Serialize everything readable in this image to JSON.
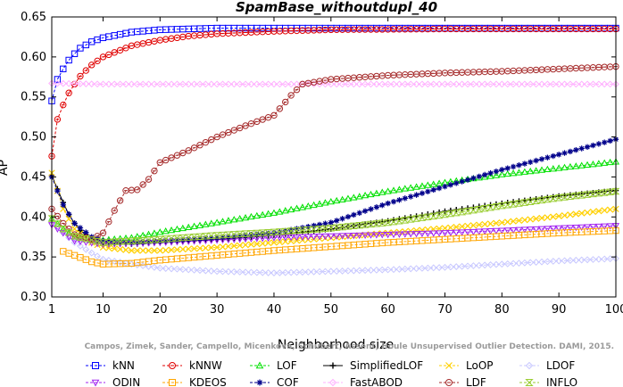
{
  "chart_data": {
    "type": "line",
    "title": "SpamBase_withoutdupl_40",
    "xlabel": "Neighborhood size",
    "ylabel": "AP",
    "xlim": [
      1,
      100
    ],
    "ylim": [
      0.3,
      0.65
    ],
    "xticks": [
      1,
      10,
      20,
      30,
      40,
      50,
      60,
      70,
      80,
      90,
      100
    ],
    "yticks": [
      0.3,
      0.35,
      0.4,
      0.45,
      0.5,
      0.55,
      0.6,
      0.65
    ],
    "ytick_labels": [
      "0.30",
      "0.35",
      "0.40",
      "0.45",
      "0.50",
      "0.55",
      "0.60",
      "0.65"
    ],
    "grid": false,
    "legend_position": "bottom",
    "annotation": "Campos, Zimek, Sander, Campello, Micenkova, Schubert, Assent, Houle Unsupervised Outlier Detection. DAMI, 2015.",
    "series": [
      {
        "name": "kNN",
        "color": "#0000ff",
        "marker": "square",
        "line": "dashed",
        "points": [
          [
            1,
            0.545
          ],
          [
            2,
            0.572
          ],
          [
            3,
            0.585
          ],
          [
            4,
            0.596
          ],
          [
            5,
            0.604
          ],
          [
            6,
            0.611
          ],
          [
            8,
            0.619
          ],
          [
            10,
            0.624
          ],
          [
            15,
            0.631
          ],
          [
            20,
            0.634
          ],
          [
            30,
            0.636
          ],
          [
            50,
            0.636
          ],
          [
            100,
            0.636
          ]
        ]
      },
      {
        "name": "kNNW",
        "color": "#e00000",
        "marker": "circle",
        "line": "dashed",
        "points": [
          [
            1,
            0.476
          ],
          [
            2,
            0.522
          ],
          [
            3,
            0.54
          ],
          [
            4,
            0.555
          ],
          [
            5,
            0.566
          ],
          [
            6,
            0.576
          ],
          [
            8,
            0.59
          ],
          [
            10,
            0.6
          ],
          [
            15,
            0.614
          ],
          [
            20,
            0.621
          ],
          [
            25,
            0.626
          ],
          [
            30,
            0.629
          ],
          [
            40,
            0.632
          ],
          [
            50,
            0.634
          ],
          [
            70,
            0.635
          ],
          [
            100,
            0.635
          ]
        ]
      },
      {
        "name": "LOF",
        "color": "#00e000",
        "marker": "triangle-up",
        "line": "dashed",
        "points": [
          [
            1,
            0.398
          ],
          [
            3,
            0.385
          ],
          [
            5,
            0.375
          ],
          [
            7,
            0.372
          ],
          [
            10,
            0.371
          ],
          [
            15,
            0.374
          ],
          [
            20,
            0.381
          ],
          [
            30,
            0.393
          ],
          [
            40,
            0.405
          ],
          [
            50,
            0.419
          ],
          [
            60,
            0.432
          ],
          [
            70,
            0.443
          ],
          [
            80,
            0.453
          ],
          [
            90,
            0.461
          ],
          [
            100,
            0.469
          ]
        ]
      },
      {
        "name": "SimplifiedLOF",
        "color": "#000000",
        "marker": "plus",
        "line": "solid",
        "points": [
          [
            1,
            0.452
          ],
          [
            2,
            0.435
          ],
          [
            3,
            0.418
          ],
          [
            4,
            0.403
          ],
          [
            5,
            0.392
          ],
          [
            6,
            0.383
          ],
          [
            8,
            0.372
          ],
          [
            10,
            0.368
          ],
          [
            15,
            0.366
          ],
          [
            20,
            0.368
          ],
          [
            30,
            0.372
          ],
          [
            40,
            0.377
          ],
          [
            50,
            0.385
          ],
          [
            60,
            0.395
          ],
          [
            70,
            0.407
          ],
          [
            80,
            0.417
          ],
          [
            90,
            0.426
          ],
          [
            100,
            0.433
          ]
        ]
      },
      {
        "name": "LoOP",
        "color": "#ffd000",
        "marker": "x",
        "line": "dashed",
        "points": [
          [
            1,
            0.455
          ],
          [
            3,
            0.41
          ],
          [
            5,
            0.385
          ],
          [
            8,
            0.368
          ],
          [
            10,
            0.362
          ],
          [
            15,
            0.358
          ],
          [
            20,
            0.358
          ],
          [
            30,
            0.362
          ],
          [
            40,
            0.368
          ],
          [
            50,
            0.374
          ],
          [
            60,
            0.38
          ],
          [
            70,
            0.386
          ],
          [
            80,
            0.393
          ],
          [
            90,
            0.401
          ],
          [
            100,
            0.41
          ]
        ]
      },
      {
        "name": "LDOF",
        "color": "#c8c8ff",
        "marker": "diamond",
        "line": "dashed",
        "points": [
          [
            1,
            0.395
          ],
          [
            3,
            0.38
          ],
          [
            5,
            0.368
          ],
          [
            8,
            0.355
          ],
          [
            10,
            0.347
          ],
          [
            15,
            0.341
          ],
          [
            20,
            0.336
          ],
          [
            30,
            0.332
          ],
          [
            40,
            0.33
          ],
          [
            50,
            0.332
          ],
          [
            60,
            0.334
          ],
          [
            70,
            0.337
          ],
          [
            80,
            0.341
          ],
          [
            90,
            0.345
          ],
          [
            100,
            0.348
          ]
        ]
      },
      {
        "name": "ODIN",
        "color": "#a020f0",
        "marker": "triangle-down",
        "line": "dashed",
        "points": [
          [
            1,
            0.39
          ],
          [
            3,
            0.38
          ],
          [
            5,
            0.37
          ],
          [
            10,
            0.366
          ],
          [
            20,
            0.368
          ],
          [
            30,
            0.371
          ],
          [
            40,
            0.374
          ],
          [
            50,
            0.376
          ],
          [
            60,
            0.378
          ],
          [
            70,
            0.38
          ],
          [
            80,
            0.383
          ],
          [
            90,
            0.386
          ],
          [
            100,
            0.389
          ]
        ]
      },
      {
        "name": "KDEOS",
        "color": "#ffa500",
        "marker": "square",
        "line": "dashed",
        "points": [
          [
            3,
            0.357
          ],
          [
            5,
            0.352
          ],
          [
            8,
            0.344
          ],
          [
            10,
            0.341
          ],
          [
            15,
            0.342
          ],
          [
            20,
            0.346
          ],
          [
            30,
            0.352
          ],
          [
            40,
            0.358
          ],
          [
            50,
            0.363
          ],
          [
            60,
            0.368
          ],
          [
            70,
            0.372
          ],
          [
            80,
            0.376
          ],
          [
            90,
            0.38
          ],
          [
            100,
            0.383
          ]
        ]
      },
      {
        "name": "COF",
        "color": "#00008b",
        "marker": "star",
        "line": "dashed",
        "points": [
          [
            1,
            0.45
          ],
          [
            3,
            0.415
          ],
          [
            5,
            0.392
          ],
          [
            8,
            0.375
          ],
          [
            10,
            0.37
          ],
          [
            15,
            0.368
          ],
          [
            20,
            0.37
          ],
          [
            30,
            0.374
          ],
          [
            40,
            0.38
          ],
          [
            50,
            0.393
          ],
          [
            60,
            0.417
          ],
          [
            70,
            0.438
          ],
          [
            80,
            0.459
          ],
          [
            90,
            0.478
          ],
          [
            100,
            0.497
          ]
        ]
      },
      {
        "name": "FastABOD",
        "color": "#ffb0ff",
        "marker": "diamond",
        "line": "dashed",
        "points": [
          [
            1,
            0.567
          ],
          [
            10,
            0.566
          ],
          [
            20,
            0.566
          ],
          [
            40,
            0.566
          ],
          [
            60,
            0.566
          ],
          [
            80,
            0.566
          ],
          [
            100,
            0.566
          ]
        ]
      },
      {
        "name": "LDF",
        "color": "#a52a2a",
        "marker": "circle",
        "line": "dashed",
        "points": [
          [
            1,
            0.41
          ],
          [
            3,
            0.392
          ],
          [
            5,
            0.378
          ],
          [
            8,
            0.372
          ],
          [
            10,
            0.38
          ],
          [
            12,
            0.408
          ],
          [
            14,
            0.433
          ],
          [
            16,
            0.434
          ],
          [
            18,
            0.447
          ],
          [
            20,
            0.468
          ],
          [
            25,
            0.483
          ],
          [
            30,
            0.5
          ],
          [
            35,
            0.514
          ],
          [
            40,
            0.527
          ],
          [
            43,
            0.552
          ],
          [
            45,
            0.566
          ],
          [
            50,
            0.572
          ],
          [
            60,
            0.577
          ],
          [
            70,
            0.58
          ],
          [
            80,
            0.582
          ],
          [
            90,
            0.585
          ],
          [
            100,
            0.588
          ]
        ]
      },
      {
        "name": "INFLO",
        "color": "#9acd32",
        "marker": "hourglass",
        "line": "dashed",
        "points": [
          [
            1,
            0.398
          ],
          [
            3,
            0.385
          ],
          [
            5,
            0.376
          ],
          [
            10,
            0.368
          ],
          [
            20,
            0.372
          ],
          [
            30,
            0.377
          ],
          [
            40,
            0.381
          ],
          [
            50,
            0.386
          ],
          [
            60,
            0.393
          ],
          [
            70,
            0.403
          ],
          [
            80,
            0.414
          ],
          [
            90,
            0.424
          ],
          [
            100,
            0.432
          ]
        ]
      }
    ]
  },
  "legend_rows": [
    [
      "kNN",
      "kNNW",
      "LOF",
      "SimplifiedLOF",
      "LoOP",
      "LDOF"
    ],
    [
      "ODIN",
      "KDEOS",
      "COF",
      "FastABOD",
      "LDF",
      "INFLO"
    ]
  ]
}
